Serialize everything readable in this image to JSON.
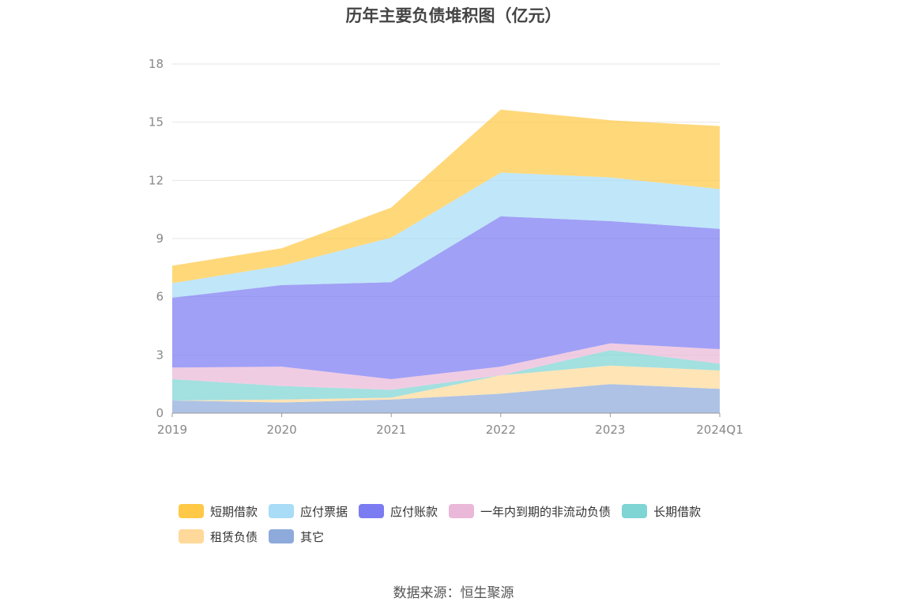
{
  "chart_data": {
    "type": "area",
    "stacked": true,
    "title": "历年主要负债堆积图（亿元）",
    "x": [
      "2019",
      "2020",
      "2021",
      "2022",
      "2023",
      "2024Q1"
    ],
    "ylim": [
      0,
      18
    ],
    "yticks": [
      0,
      3,
      6,
      9,
      12,
      15,
      18
    ],
    "grid": true,
    "legend_position": "bottom",
    "series": [
      {
        "name": "其它",
        "color": "#8eaadb",
        "values": [
          0.65,
          0.55,
          0.7,
          1.0,
          1.5,
          1.25
        ]
      },
      {
        "name": "租赁负债",
        "color": "#ffd99a",
        "values": [
          0.0,
          0.15,
          0.1,
          0.95,
          0.95,
          0.95
        ]
      },
      {
        "name": "长期借款",
        "color": "#7fd4d4",
        "values": [
          1.1,
          0.7,
          0.4,
          0.0,
          0.8,
          0.35
        ]
      },
      {
        "name": "一年内到期的非流动负债",
        "color": "#eab8d8",
        "values": [
          0.6,
          1.0,
          0.55,
          0.45,
          0.35,
          0.75
        ]
      },
      {
        "name": "应付账款",
        "color": "#7b7bf2",
        "values": [
          3.6,
          4.2,
          5.0,
          7.75,
          6.3,
          6.2
        ]
      },
      {
        "name": "应付票据",
        "color": "#a8dcf7",
        "values": [
          0.75,
          1.0,
          2.3,
          2.25,
          2.25,
          2.05
        ]
      },
      {
        "name": "短期借款",
        "color": "#ffc947",
        "values": [
          0.9,
          0.9,
          1.55,
          3.25,
          2.95,
          3.25
        ]
      }
    ],
    "legend_order": [
      "短期借款",
      "应付票据",
      "应付账款",
      "一年内到期的非流动负债",
      "长期借款",
      "租赁负债",
      "其它"
    ]
  },
  "source": "数据来源：恒生聚源"
}
